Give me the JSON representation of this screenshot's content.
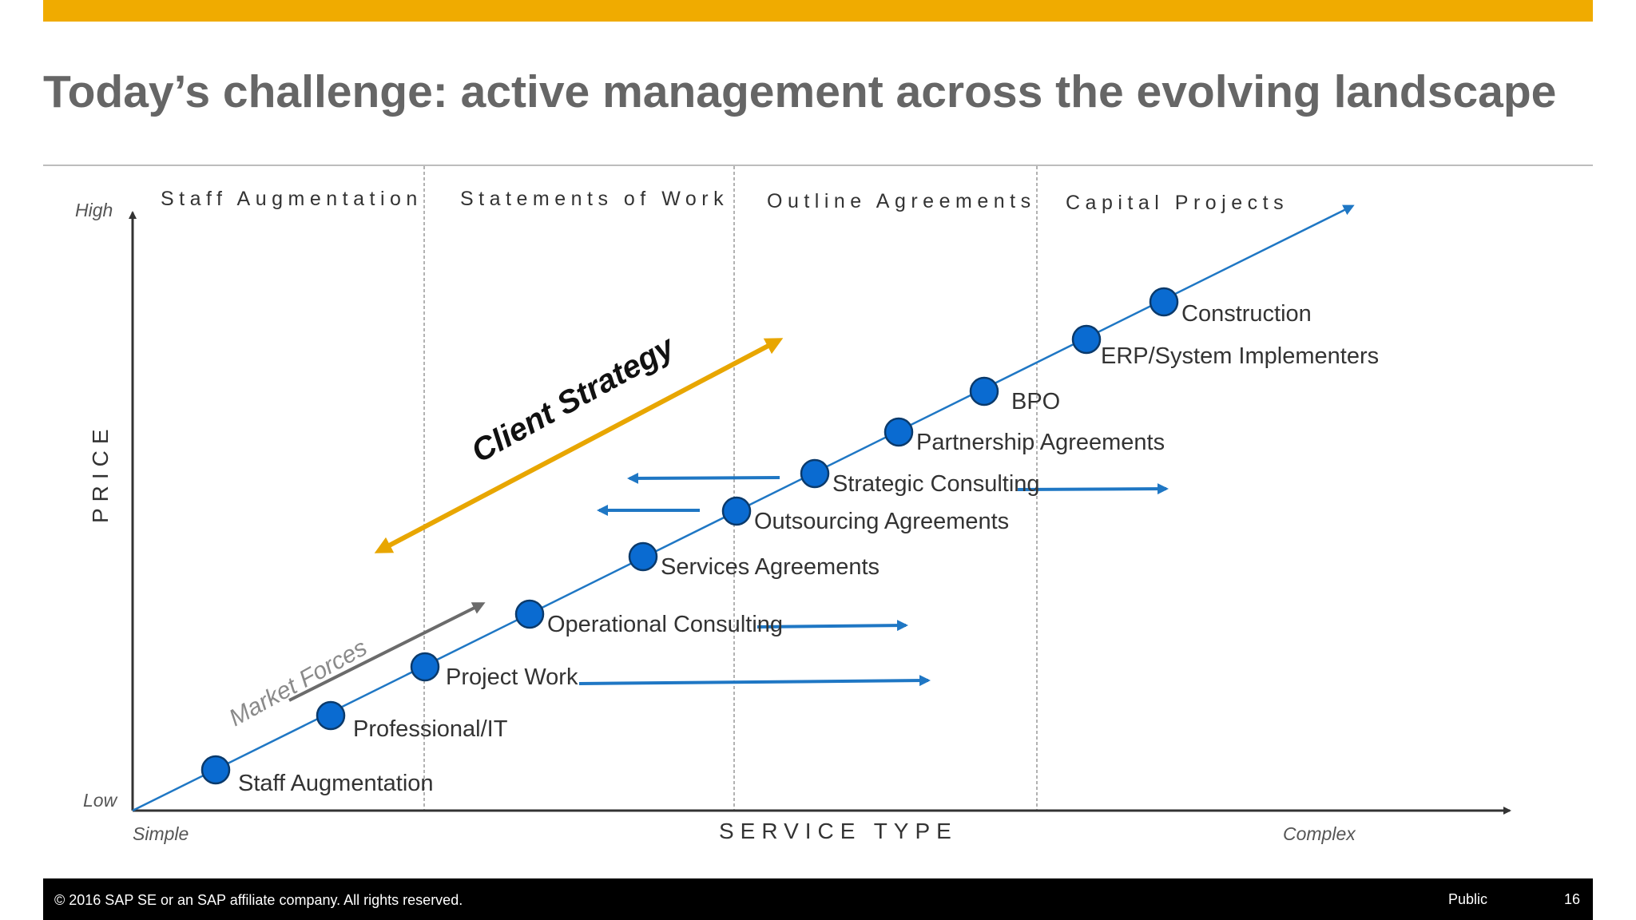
{
  "slide": {
    "title": "Today’s challenge: active management across the evolving landscape",
    "accent_color": "#f0ab00",
    "title_color": "#666666"
  },
  "diagram": {
    "y_axis": {
      "label": "PRICE",
      "high": "High",
      "low": "Low"
    },
    "x_axis": {
      "label": "SERVICE TYPE",
      "simple": "Simple",
      "complex": "Complex"
    },
    "columns": [
      "Staff Augmentation",
      "Statements of Work",
      "Outline Agreements",
      "Capital Projects"
    ],
    "points": [
      "Staff Augmentation",
      "Professional/IT",
      "Project Work",
      "Operational Consulting",
      "Services Agreements",
      "Outsourcing Agreements",
      "Strategic Consulting",
      "Partnership Agreements",
      "BPO",
      "ERP/System Implementers",
      "Construction"
    ],
    "client_strategy_label": "Client Strategy",
    "market_forces_label": "Market Forces",
    "colors": {
      "line": "#1f77c4",
      "marker": "#0a6bd1",
      "marker_stroke": "#0b3a6b",
      "client_strategy": "#e8a600",
      "market_forces": "#6b6b6b",
      "axis": "#333333",
      "divider": "#999999"
    }
  },
  "footer": {
    "copyright": "© 2016 SAP SE or an SAP affiliate company. All rights reserved.",
    "classification": "Public",
    "page_number": "16"
  }
}
